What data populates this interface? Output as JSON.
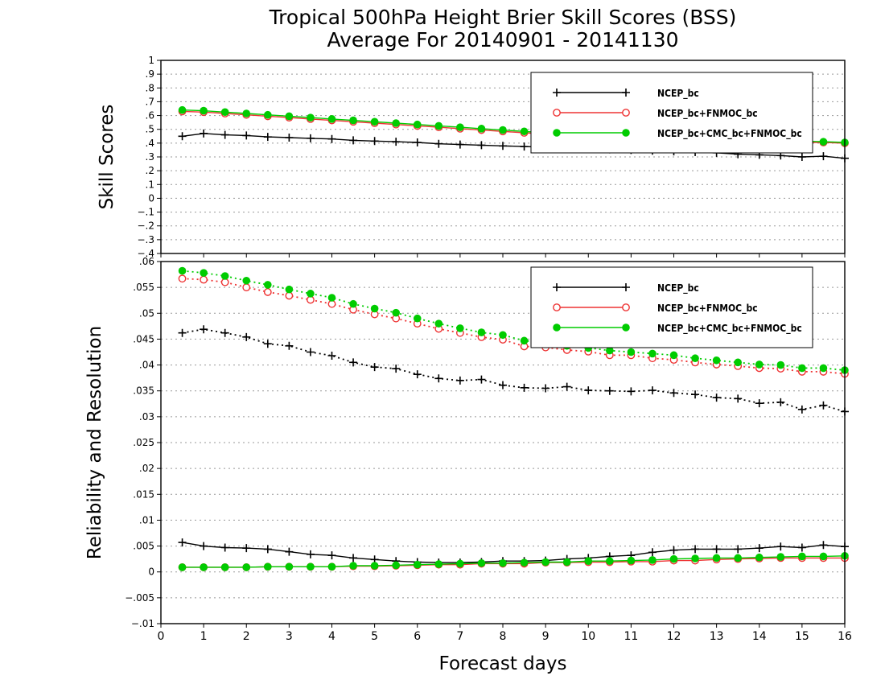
{
  "titles": {
    "line1": "Tropical 500hPa Height Brier Skill Scores (BSS)",
    "line2": "Average For 20140901 - 20141130"
  },
  "colors": {
    "ncep": "#000000",
    "fnmoc": "#ee3333",
    "cmc": "#00cc00",
    "grid": "#999999"
  },
  "chart_data": [
    {
      "type": "line",
      "ylabel": "Skill Scores",
      "xlabel": "",
      "xlim": [
        0,
        16
      ],
      "ylim": [
        -0.4,
        1
      ],
      "x_ticks": [
        0,
        1,
        2,
        3,
        4,
        5,
        6,
        7,
        8,
        9,
        10,
        11,
        12,
        13,
        14,
        15,
        16
      ],
      "y_ticks": [
        -0.4,
        -0.3,
        -0.2,
        -0.1,
        0,
        0.1,
        0.2,
        0.3,
        0.4,
        0.5,
        0.6,
        0.7,
        0.8,
        0.9,
        1
      ],
      "grid": "horizontal dotted",
      "legend_position": "top-right",
      "x": [
        0.5,
        1,
        1.5,
        2,
        2.5,
        3,
        3.5,
        4,
        4.5,
        5,
        5.5,
        6,
        6.5,
        7,
        7.5,
        8,
        8.5,
        9,
        9.5,
        10,
        10.5,
        11,
        11.5,
        12,
        12.5,
        13,
        13.5,
        14,
        14.5,
        15,
        15.5,
        16
      ],
      "series": [
        {
          "name": "NCEP_bc",
          "marker": "plus",
          "style": "solid",
          "values": [
            0.45,
            0.47,
            0.46,
            0.455,
            0.445,
            0.44,
            0.435,
            0.43,
            0.42,
            0.415,
            0.41,
            0.405,
            0.395,
            0.39,
            0.385,
            0.38,
            0.375,
            0.37,
            0.365,
            0.36,
            0.355,
            0.35,
            0.345,
            0.34,
            0.335,
            0.33,
            0.32,
            0.315,
            0.31,
            0.3,
            0.305,
            0.29
          ]
        },
        {
          "name": "NCEP_bc+FNMOC_bc",
          "marker": "circle",
          "style": "solid",
          "values": [
            0.63,
            0.625,
            0.615,
            0.605,
            0.595,
            0.585,
            0.575,
            0.565,
            0.555,
            0.545,
            0.535,
            0.525,
            0.515,
            0.505,
            0.495,
            0.485,
            0.475,
            0.465,
            0.46,
            0.455,
            0.45,
            0.445,
            0.44,
            0.435,
            0.43,
            0.425,
            0.42,
            0.415,
            0.41,
            0.405,
            0.405,
            0.4
          ]
        },
        {
          "name": "NCEP_bc+CMC_bc+FNMOC_bc",
          "marker": "dot",
          "style": "solid",
          "values": [
            0.64,
            0.635,
            0.625,
            0.615,
            0.605,
            0.595,
            0.585,
            0.575,
            0.565,
            0.555,
            0.545,
            0.535,
            0.525,
            0.515,
            0.505,
            0.495,
            0.485,
            0.475,
            0.47,
            0.465,
            0.46,
            0.455,
            0.45,
            0.445,
            0.44,
            0.435,
            0.43,
            0.425,
            0.42,
            0.415,
            0.41,
            0.405
          ]
        }
      ]
    },
    {
      "type": "line",
      "ylabel": "Reliability and Resolution",
      "xlabel": "Forecast days",
      "xlim": [
        0,
        16
      ],
      "ylim": [
        -0.01,
        0.06
      ],
      "x_ticks": [
        0,
        1,
        2,
        3,
        4,
        5,
        6,
        7,
        8,
        9,
        10,
        11,
        12,
        13,
        14,
        15,
        16
      ],
      "y_ticks": [
        -0.01,
        -0.005,
        0,
        0.005,
        0.01,
        0.015,
        0.02,
        0.025,
        0.03,
        0.035,
        0.04,
        0.045,
        0.05,
        0.055,
        0.06
      ],
      "grid": "horizontal dotted",
      "legend_position": "top-right",
      "x": [
        0.5,
        1,
        1.5,
        2,
        2.5,
        3,
        3.5,
        4,
        4.5,
        5,
        5.5,
        6,
        6.5,
        7,
        7.5,
        8,
        8.5,
        9,
        9.5,
        10,
        10.5,
        11,
        11.5,
        12,
        12.5,
        13,
        13.5,
        14,
        14.5,
        15,
        15.5,
        16
      ],
      "series": [
        {
          "name": "NCEP_bc",
          "component": "resolution",
          "marker": "plus",
          "style": "dotted",
          "values": [
            0.0462,
            0.0469,
            0.0462,
            0.0454,
            0.0441,
            0.0437,
            0.0425,
            0.0418,
            0.0405,
            0.0396,
            0.0393,
            0.0382,
            0.0374,
            0.037,
            0.0372,
            0.0361,
            0.0356,
            0.0355,
            0.0358,
            0.0351,
            0.035,
            0.0349,
            0.0351,
            0.0346,
            0.0343,
            0.0337,
            0.0335,
            0.0326,
            0.0328,
            0.0314,
            0.0322,
            0.031
          ]
        },
        {
          "name": "NCEP_bc+FNMOC_bc",
          "component": "resolution",
          "marker": "circle",
          "style": "dotted",
          "values": [
            0.0567,
            0.0565,
            0.056,
            0.055,
            0.0541,
            0.0534,
            0.0526,
            0.0518,
            0.0507,
            0.0498,
            0.049,
            0.048,
            0.047,
            0.0462,
            0.0454,
            0.0449,
            0.0436,
            0.0434,
            0.0429,
            0.0426,
            0.0419,
            0.0419,
            0.0413,
            0.041,
            0.0405,
            0.0401,
            0.0398,
            0.0394,
            0.0393,
            0.0387,
            0.0387,
            0.0383
          ]
        },
        {
          "name": "NCEP_bc+CMC_bc+FNMOC_bc",
          "component": "resolution",
          "marker": "dot",
          "style": "dotted",
          "values": [
            0.0582,
            0.0578,
            0.0572,
            0.0563,
            0.0555,
            0.0546,
            0.0538,
            0.053,
            0.0518,
            0.0509,
            0.0501,
            0.049,
            0.048,
            0.0471,
            0.0463,
            0.0458,
            0.0447,
            0.0444,
            0.0437,
            0.0433,
            0.0428,
            0.0425,
            0.0422,
            0.0419,
            0.0413,
            0.0409,
            0.0405,
            0.0401,
            0.04,
            0.0394,
            0.0394,
            0.039
          ]
        },
        {
          "name": "NCEP_bc",
          "component": "reliability",
          "marker": "plus",
          "style": "solid",
          "values": [
            0.0057,
            0.005,
            0.0047,
            0.0046,
            0.0044,
            0.0039,
            0.0034,
            0.0032,
            0.0027,
            0.0024,
            0.0021,
            0.0019,
            0.0018,
            0.0018,
            0.0019,
            0.0021,
            0.0021,
            0.0022,
            0.0025,
            0.0027,
            0.003,
            0.0032,
            0.0038,
            0.0042,
            0.0044,
            0.0044,
            0.0044,
            0.0046,
            0.0049,
            0.0047,
            0.0052,
            0.0049
          ]
        },
        {
          "name": "NCEP_bc+FNMOC_bc",
          "component": "reliability",
          "marker": "circle",
          "style": "solid",
          "values": [
            0.0009,
            0.0009,
            0.0009,
            0.0009,
            0.001,
            0.001,
            0.001,
            0.001,
            0.0011,
            0.0011,
            0.0012,
            0.0013,
            0.0014,
            0.0014,
            0.0016,
            0.0016,
            0.0016,
            0.0018,
            0.0018,
            0.0019,
            0.0019,
            0.002,
            0.002,
            0.0022,
            0.0022,
            0.0024,
            0.0025,
            0.0026,
            0.0027,
            0.0027,
            0.0027,
            0.0027
          ]
        },
        {
          "name": "NCEP_bc+CMC_bc+FNMOC_bc",
          "component": "reliability",
          "marker": "dot",
          "style": "solid",
          "values": [
            0.0009,
            0.0009,
            0.0009,
            0.0009,
            0.001,
            0.001,
            0.001,
            0.001,
            0.0012,
            0.0012,
            0.0013,
            0.0014,
            0.0015,
            0.0016,
            0.0017,
            0.0017,
            0.0018,
            0.0019,
            0.0019,
            0.0021,
            0.0021,
            0.0022,
            0.0023,
            0.0025,
            0.0026,
            0.0027,
            0.0027,
            0.0028,
            0.0029,
            0.003,
            0.003,
            0.0031
          ]
        }
      ]
    }
  ],
  "legend": [
    {
      "label": "NCEP_bc",
      "marker": "plus"
    },
    {
      "label": "NCEP_bc+FNMOC_bc",
      "marker": "circle"
    },
    {
      "label": "NCEP_bc+CMC_bc+FNMOC_bc",
      "marker": "dot"
    }
  ]
}
